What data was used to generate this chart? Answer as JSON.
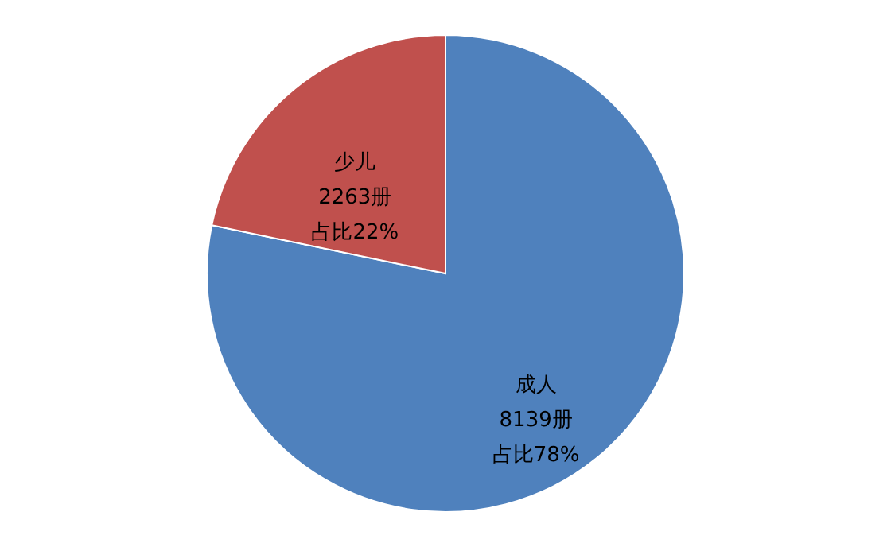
{
  "chart_data": {
    "type": "pie",
    "categories": [
      "成人",
      "少儿"
    ],
    "values": [
      8139,
      2263
    ],
    "colors": [
      "#4f81bd",
      "#c0504d"
    ],
    "value_labels": [
      "8139册",
      "2263册"
    ],
    "annotations": [
      {
        "text": "占比78%",
        "x": "成人"
      },
      {
        "text": "占比22%",
        "x": "少儿"
      }
    ],
    "legend": false
  }
}
